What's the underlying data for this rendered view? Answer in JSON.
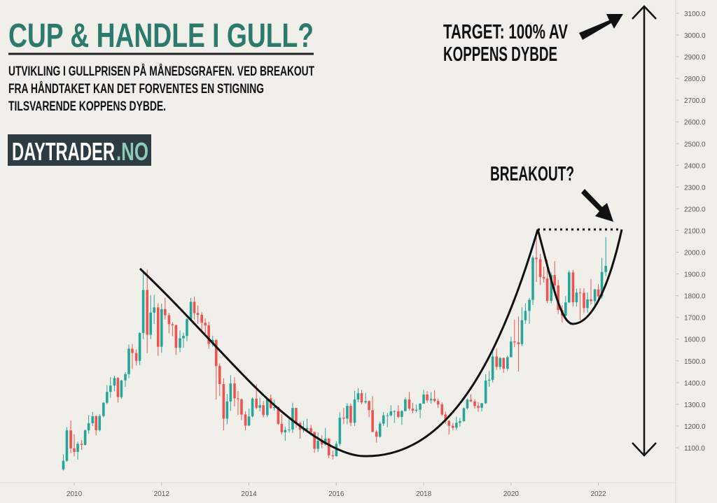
{
  "chart_data": {
    "type": "candlestick",
    "title": "CUP & HANDLE I GULL?",
    "subtitle": [
      "UTVIKLING I GULLPRISEN PÅ MÅNEDSGRAFEN. VED BREAKOUT",
      "FRA HÅNDTAKET KAN DET FORVENTES EN STIGNING",
      "TILSVARENDE KOPPENS DYBDE."
    ],
    "logo": {
      "name": "DAYTRADER",
      "domain": ".NO"
    },
    "annotations": {
      "target": [
        "TARGET: 100% AV",
        "KOPPENS DYBDE"
      ],
      "breakout": "BREAKOUT?"
    },
    "up_color": "#26a69a",
    "down_color": "#ef5350",
    "xlim": [
      2008.3,
      2023.77
    ],
    "xticks": [
      2010,
      2012,
      2014,
      2016,
      2018,
      2020,
      2022
    ],
    "ylim": [
      939,
      3161
    ],
    "yticks": [
      {
        "value": 1100,
        "label": "1100.0"
      },
      {
        "value": 1200,
        "label": "1200.0"
      },
      {
        "value": 1300,
        "label": "1300.0"
      },
      {
        "value": 1400,
        "label": "1400.0"
      },
      {
        "value": 1500,
        "label": "1500.0"
      },
      {
        "value": 1600,
        "label": "1600.0"
      },
      {
        "value": 1700,
        "label": "1700.0"
      },
      {
        "value": 1800,
        "label": "1800.0"
      },
      {
        "value": 1900,
        "label": "1900.0"
      },
      {
        "value": 2000,
        "label": "2000.0"
      },
      {
        "value": 2100,
        "label": "2100.0"
      },
      {
        "value": 2200,
        "label": "2200.0"
      },
      {
        "value": 2300,
        "label": "2300.0"
      },
      {
        "value": 2400,
        "label": "2400.0"
      },
      {
        "value": 2500,
        "label": "2500.0"
      },
      {
        "value": 2600,
        "label": "2600.0"
      },
      {
        "value": 2700,
        "label": "2700.0"
      },
      {
        "value": 2800,
        "label": "2800.0"
      },
      {
        "value": 2900,
        "label": "2900.0"
      },
      {
        "value": 3000,
        "label": "3000.0"
      },
      {
        "value": 3100,
        "label": "3100.0"
      }
    ],
    "series": [
      {
        "x": [
          2009.75,
          2009.83,
          2009.92,
          2010.0,
          2010.08,
          2010.17,
          2010.25,
          2010.33,
          2010.42,
          2010.5,
          2010.58,
          2010.67,
          2010.75,
          2010.83,
          2010.92,
          2011.0,
          2011.08,
          2011.17,
          2011.25,
          2011.33,
          2011.42,
          2011.5,
          2011.58,
          2011.67,
          2011.75,
          2011.83,
          2011.92,
          2012.0,
          2012.08,
          2012.17,
          2012.25,
          2012.33,
          2012.42,
          2012.5,
          2012.58,
          2012.67,
          2012.75,
          2012.83,
          2012.92,
          2013.0,
          2013.08,
          2013.17,
          2013.25,
          2013.33,
          2013.42,
          2013.5,
          2013.58,
          2013.67,
          2013.75,
          2013.83,
          2013.92,
          2014.0,
          2014.08,
          2014.17,
          2014.25,
          2014.33,
          2014.42,
          2014.5,
          2014.58,
          2014.67,
          2014.75,
          2014.83,
          2014.92,
          2015.0,
          2015.08,
          2015.17,
          2015.25,
          2015.33,
          2015.42,
          2015.5,
          2015.58,
          2015.67,
          2015.75,
          2015.83,
          2015.92,
          2016.0,
          2016.08,
          2016.17,
          2016.25,
          2016.33,
          2016.42,
          2016.5,
          2016.58,
          2016.67,
          2016.75,
          2016.83,
          2016.92,
          2017.0,
          2017.08,
          2017.17,
          2017.25,
          2017.33,
          2017.42,
          2017.5,
          2017.58,
          2017.67,
          2017.75,
          2017.83,
          2017.92,
          2018.0,
          2018.08,
          2018.17,
          2018.25,
          2018.33,
          2018.42,
          2018.5,
          2018.58,
          2018.67,
          2018.75,
          2018.83,
          2018.92,
          2019.0,
          2019.08,
          2019.17,
          2019.25,
          2019.33,
          2019.42,
          2019.5,
          2019.58,
          2019.67,
          2019.75,
          2019.83,
          2019.92,
          2020.0,
          2020.08,
          2020.17,
          2020.25,
          2020.33,
          2020.42,
          2020.5,
          2020.58,
          2020.67,
          2020.75,
          2020.83,
          2020.92,
          2021.0,
          2021.08,
          2021.17,
          2021.25,
          2021.33,
          2021.42,
          2021.5,
          2021.58,
          2021.67,
          2021.75,
          2021.83,
          2021.92,
          2022.0,
          2022.08,
          2022.17
        ],
        "ohlc": [
          [
            1000,
            1070,
            995,
            1040
          ],
          [
            1040,
            1195,
            1035,
            1180
          ],
          [
            1180,
            1225,
            1075,
            1097
          ],
          [
            1097,
            1162,
            1060,
            1081
          ],
          [
            1081,
            1128,
            1045,
            1118
          ],
          [
            1118,
            1135,
            1090,
            1113
          ],
          [
            1113,
            1185,
            1110,
            1180
          ],
          [
            1180,
            1250,
            1165,
            1213
          ],
          [
            1213,
            1265,
            1200,
            1245
          ],
          [
            1245,
            1250,
            1157,
            1181
          ],
          [
            1181,
            1255,
            1175,
            1246
          ],
          [
            1246,
            1310,
            1240,
            1307
          ],
          [
            1307,
            1388,
            1300,
            1357
          ],
          [
            1357,
            1425,
            1330,
            1386
          ],
          [
            1386,
            1432,
            1360,
            1421
          ],
          [
            1421,
            1425,
            1308,
            1333
          ],
          [
            1333,
            1412,
            1325,
            1410
          ],
          [
            1410,
            1448,
            1380,
            1439
          ],
          [
            1439,
            1575,
            1420,
            1556
          ],
          [
            1556,
            1577,
            1462,
            1536
          ],
          [
            1536,
            1553,
            1478,
            1500
          ],
          [
            1500,
            1632,
            1480,
            1628
          ],
          [
            1628,
            1912,
            1600,
            1826
          ],
          [
            1826,
            1920,
            1535,
            1620
          ],
          [
            1620,
            1803,
            1600,
            1722
          ],
          [
            1722,
            1804,
            1670,
            1746
          ],
          [
            1746,
            1765,
            1523,
            1565
          ],
          [
            1565,
            1763,
            1537,
            1738
          ],
          [
            1738,
            1790,
            1690,
            1710
          ],
          [
            1710,
            1720,
            1627,
            1669
          ],
          [
            1669,
            1678,
            1613,
            1664
          ],
          [
            1664,
            1667,
            1527,
            1560
          ],
          [
            1560,
            1640,
            1540,
            1604
          ],
          [
            1604,
            1630,
            1560,
            1615
          ],
          [
            1615,
            1697,
            1590,
            1692
          ],
          [
            1692,
            1790,
            1690,
            1772
          ],
          [
            1772,
            1796,
            1690,
            1720
          ],
          [
            1720,
            1755,
            1670,
            1712
          ],
          [
            1712,
            1725,
            1630,
            1675
          ],
          [
            1675,
            1695,
            1625,
            1663
          ],
          [
            1663,
            1680,
            1555,
            1578
          ],
          [
            1578,
            1616,
            1565,
            1596
          ],
          [
            1596,
            1600,
            1322,
            1476
          ],
          [
            1476,
            1488,
            1338,
            1393
          ],
          [
            1393,
            1420,
            1180,
            1234
          ],
          [
            1234,
            1348,
            1208,
            1313
          ],
          [
            1313,
            1434,
            1270,
            1396
          ],
          [
            1396,
            1425,
            1290,
            1327
          ],
          [
            1327,
            1361,
            1251,
            1323
          ],
          [
            1323,
            1327,
            1227,
            1253
          ],
          [
            1253,
            1267,
            1180,
            1202
          ],
          [
            1202,
            1280,
            1200,
            1244
          ],
          [
            1244,
            1332,
            1240,
            1326
          ],
          [
            1326,
            1392,
            1277,
            1284
          ],
          [
            1284,
            1331,
            1268,
            1296
          ],
          [
            1296,
            1315,
            1240,
            1250
          ],
          [
            1250,
            1330,
            1241,
            1327
          ],
          [
            1327,
            1345,
            1280,
            1282
          ],
          [
            1282,
            1322,
            1271,
            1287
          ],
          [
            1287,
            1290,
            1206,
            1210
          ],
          [
            1210,
            1255,
            1161,
            1171
          ],
          [
            1171,
            1197,
            1132,
            1182
          ],
          [
            1182,
            1238,
            1170,
            1184
          ],
          [
            1184,
            1307,
            1168,
            1283
          ],
          [
            1283,
            1284,
            1192,
            1213
          ],
          [
            1213,
            1220,
            1142,
            1183
          ],
          [
            1183,
            1224,
            1170,
            1184
          ],
          [
            1184,
            1233,
            1170,
            1190
          ],
          [
            1190,
            1205,
            1162,
            1172
          ],
          [
            1172,
            1175,
            1077,
            1095
          ],
          [
            1095,
            1170,
            1080,
            1132
          ],
          [
            1132,
            1157,
            1098,
            1115
          ],
          [
            1115,
            1191,
            1110,
            1142
          ],
          [
            1142,
            1143,
            1052,
            1065
          ],
          [
            1065,
            1088,
            1046,
            1061
          ],
          [
            1061,
            1130,
            1060,
            1118
          ],
          [
            1118,
            1263,
            1108,
            1238
          ],
          [
            1238,
            1283,
            1209,
            1234
          ],
          [
            1234,
            1304,
            1208,
            1293
          ],
          [
            1293,
            1304,
            1199,
            1215
          ],
          [
            1215,
            1362,
            1200,
            1322
          ],
          [
            1322,
            1375,
            1310,
            1351
          ],
          [
            1351,
            1367,
            1300,
            1309
          ],
          [
            1309,
            1352,
            1302,
            1315
          ],
          [
            1315,
            1318,
            1241,
            1273
          ],
          [
            1273,
            1338,
            1171,
            1173
          ],
          [
            1173,
            1181,
            1123,
            1151
          ],
          [
            1151,
            1220,
            1146,
            1211
          ],
          [
            1211,
            1264,
            1200,
            1249
          ],
          [
            1249,
            1261,
            1195,
            1249
          ],
          [
            1249,
            1296,
            1244,
            1268
          ],
          [
            1268,
            1273,
            1214,
            1268
          ],
          [
            1268,
            1296,
            1236,
            1242
          ],
          [
            1242,
            1272,
            1205,
            1269
          ],
          [
            1269,
            1331,
            1267,
            1322
          ],
          [
            1322,
            1357,
            1272,
            1280
          ],
          [
            1280,
            1307,
            1260,
            1271
          ],
          [
            1271,
            1299,
            1263,
            1275
          ],
          [
            1275,
            1307,
            1236,
            1303
          ],
          [
            1303,
            1366,
            1302,
            1345
          ],
          [
            1345,
            1361,
            1307,
            1318
          ],
          [
            1318,
            1356,
            1303,
            1325
          ],
          [
            1325,
            1365,
            1310,
            1315
          ],
          [
            1315,
            1326,
            1282,
            1299
          ],
          [
            1299,
            1309,
            1246,
            1253
          ],
          [
            1253,
            1266,
            1211,
            1224
          ],
          [
            1224,
            1227,
            1160,
            1201
          ],
          [
            1201,
            1214,
            1180,
            1192
          ],
          [
            1192,
            1243,
            1182,
            1215
          ],
          [
            1215,
            1237,
            1196,
            1222
          ],
          [
            1222,
            1285,
            1221,
            1282
          ],
          [
            1282,
            1326,
            1276,
            1321
          ],
          [
            1321,
            1346,
            1310,
            1313
          ],
          [
            1313,
            1324,
            1280,
            1292
          ],
          [
            1292,
            1310,
            1266,
            1284
          ],
          [
            1284,
            1306,
            1267,
            1305
          ],
          [
            1305,
            1439,
            1301,
            1409
          ],
          [
            1409,
            1453,
            1381,
            1413
          ],
          [
            1413,
            1555,
            1401,
            1520
          ],
          [
            1520,
            1557,
            1459,
            1472
          ],
          [
            1472,
            1518,
            1459,
            1513
          ],
          [
            1513,
            1516,
            1445,
            1464
          ],
          [
            1464,
            1524,
            1453,
            1517
          ],
          [
            1517,
            1611,
            1516,
            1589
          ],
          [
            1589,
            1689,
            1563,
            1585
          ],
          [
            1585,
            1704,
            1451,
            1577
          ],
          [
            1577,
            1747,
            1568,
            1687
          ],
          [
            1687,
            1765,
            1670,
            1730
          ],
          [
            1730,
            1789,
            1671,
            1781
          ],
          [
            1781,
            1984,
            1757,
            1975
          ],
          [
            1975,
            2075,
            1863,
            1968
          ],
          [
            1968,
            1992,
            1849,
            1886
          ],
          [
            1886,
            1933,
            1860,
            1879
          ],
          [
            1879,
            1965,
            1765,
            1776
          ],
          [
            1776,
            1906,
            1765,
            1895
          ],
          [
            1895,
            1959,
            1803,
            1847
          ],
          [
            1847,
            1872,
            1717,
            1734
          ],
          [
            1734,
            1755,
            1677,
            1708
          ],
          [
            1708,
            1798,
            1706,
            1769
          ],
          [
            1769,
            1916,
            1766,
            1907
          ],
          [
            1907,
            1919,
            1750,
            1770
          ],
          [
            1770,
            1832,
            1750,
            1814
          ],
          [
            1814,
            1834,
            1688,
            1813
          ],
          [
            1813,
            1834,
            1721,
            1743
          ],
          [
            1743,
            1814,
            1722,
            1783
          ],
          [
            1783,
            1877,
            1759,
            1775
          ],
          [
            1775,
            1831,
            1753,
            1829
          ],
          [
            1829,
            1853,
            1780,
            1797
          ],
          [
            1797,
            1974,
            1786,
            1909
          ],
          [
            1909,
            2070,
            1890,
            1937
          ]
        ]
      }
    ]
  }
}
